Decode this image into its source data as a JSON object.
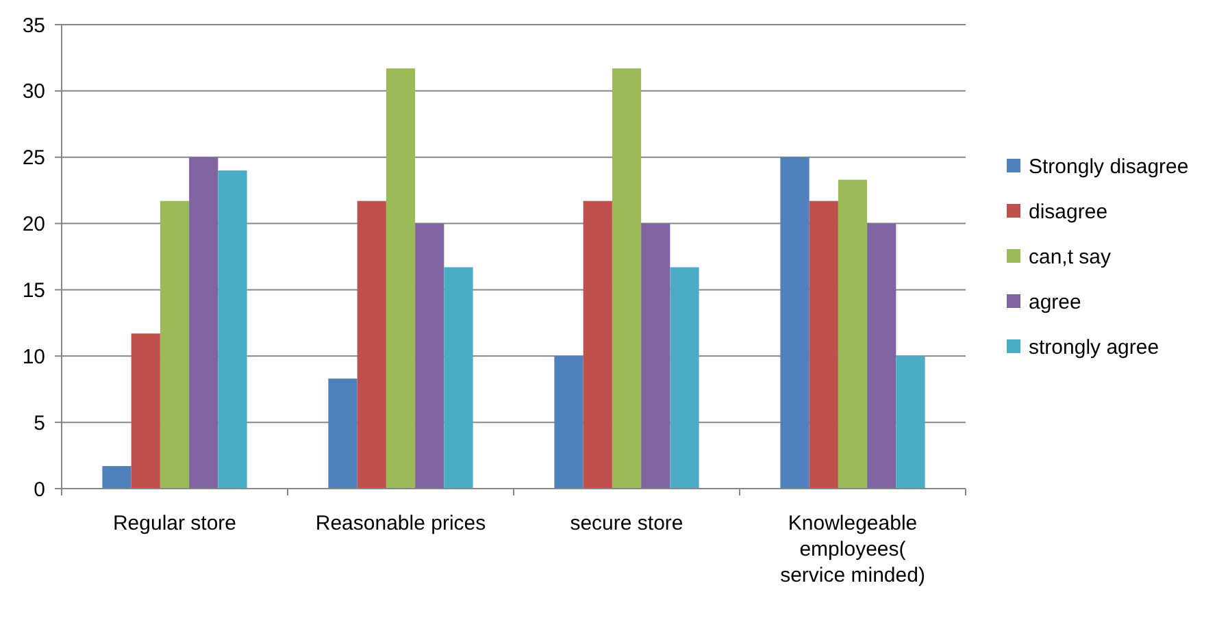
{
  "chart_data": {
    "type": "bar",
    "categories": [
      "Regular store",
      "Reasonable prices",
      "secure store",
      "Knowlegeable employees( service minded)"
    ],
    "series": [
      {
        "name": "Strongly disagree",
        "color": "#4f81bd",
        "values": [
          1.7,
          8.3,
          10,
          25
        ]
      },
      {
        "name": "disagree",
        "color": "#c0504d",
        "values": [
          11.7,
          21.7,
          21.7,
          21.7
        ]
      },
      {
        "name": "can,t say",
        "color": "#9bbb59",
        "values": [
          21.7,
          31.7,
          31.7,
          23.3
        ]
      },
      {
        "name": "agree",
        "color": "#8064a2",
        "values": [
          25,
          20,
          20,
          20
        ]
      },
      {
        "name": "strongly agree",
        "color": "#4bacc6",
        "values": [
          24,
          16.7,
          16.7,
          10
        ]
      }
    ],
    "ylim": [
      0,
      35
    ],
    "yticks": [
      0,
      5,
      10,
      15,
      20,
      25,
      30,
      35
    ],
    "grid": "y",
    "legend": "right"
  }
}
